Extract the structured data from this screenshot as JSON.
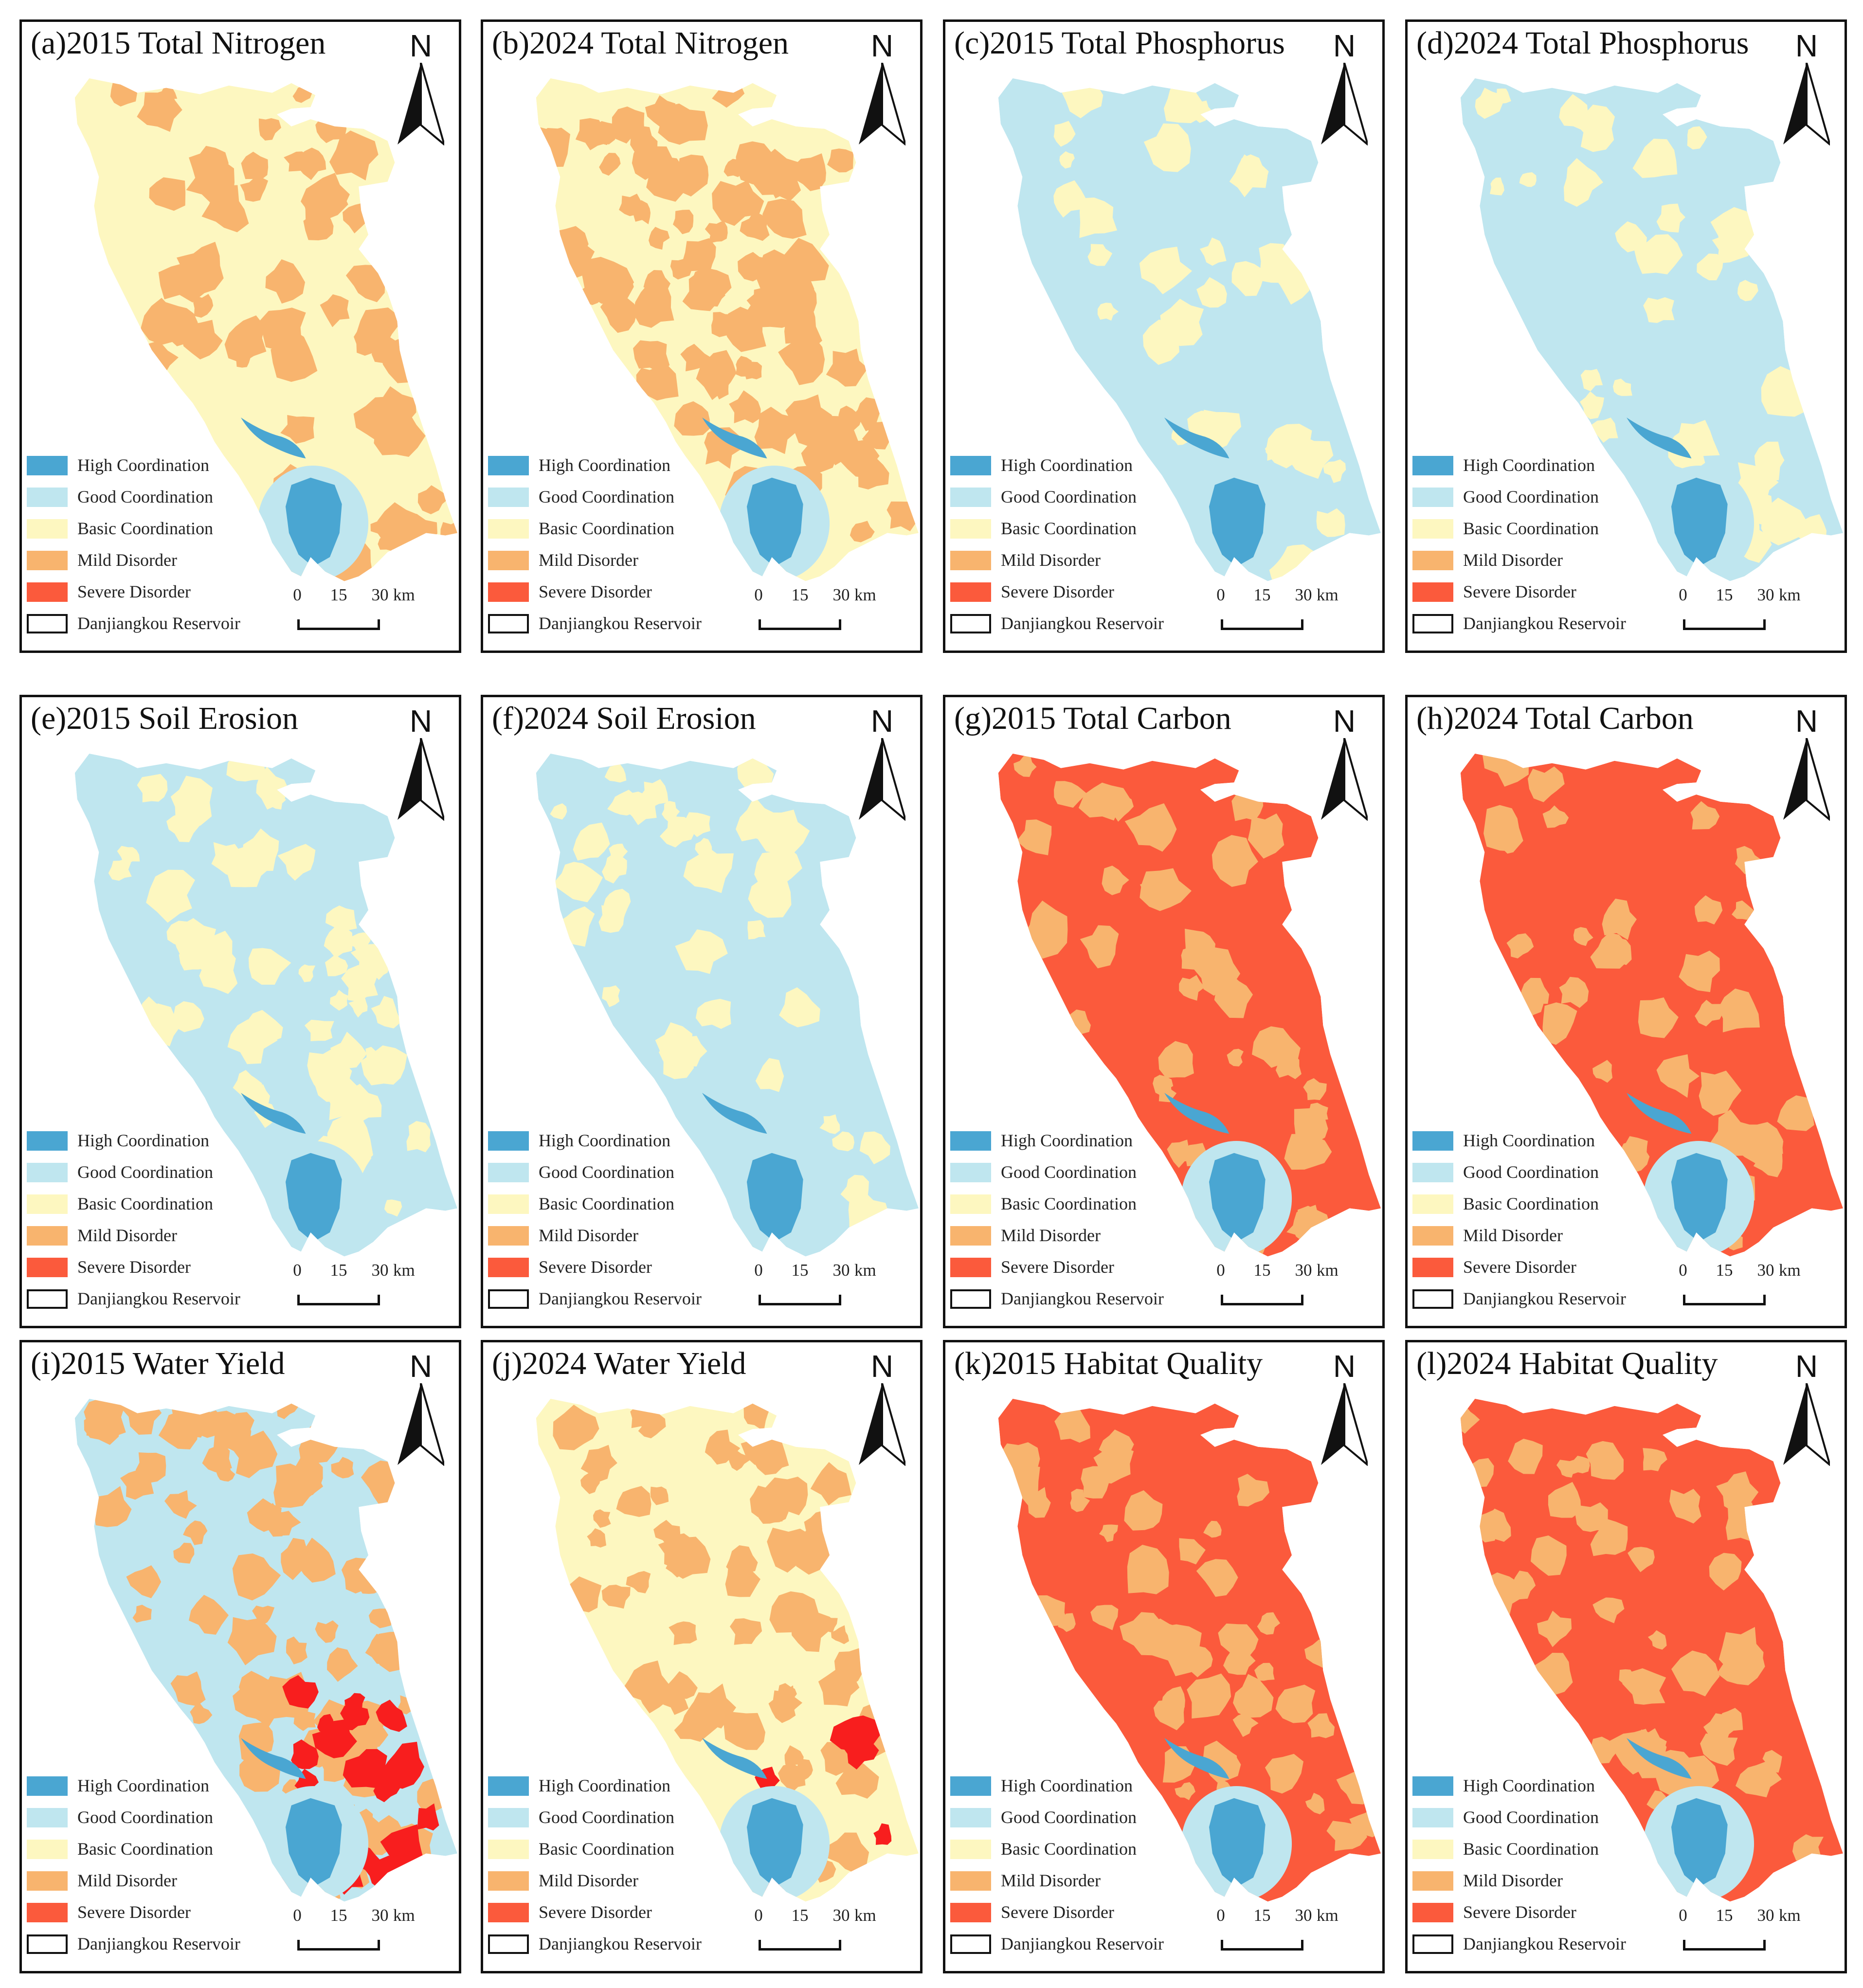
{
  "figure": {
    "panels": [
      {
        "title": "(a)2015 Total Nitrogen",
        "base": "basic",
        "patches": "mild",
        "patch_density": 0.38,
        "severe_overlay": 0.0
      },
      {
        "title": "(b)2024 Total Nitrogen",
        "base": "basic",
        "patches": "mild",
        "patch_density": 0.62,
        "severe_overlay": 0.0
      },
      {
        "title": "(c)2015 Total Phosphorus",
        "base": "good",
        "patches": "basic",
        "patch_density": 0.22,
        "severe_overlay": 0.0
      },
      {
        "title": "(d)2024 Total Phosphorus",
        "base": "good",
        "patches": "basic",
        "patch_density": 0.26,
        "severe_overlay": 0.0
      },
      {
        "title": "(e)2015 Soil Erosion",
        "base": "good",
        "patches": "basic",
        "patch_density": 0.42,
        "severe_overlay": 0.0
      },
      {
        "title": "(f)2024 Soil Erosion",
        "base": "good",
        "patches": "basic",
        "patch_density": 0.3,
        "severe_overlay": 0.0
      },
      {
        "title": "(g)2015 Total Carbon",
        "base": "severe",
        "patches": "mild",
        "patch_density": 0.3,
        "severe_overlay": 0.0
      },
      {
        "title": "(h)2024 Total Carbon",
        "base": "severe",
        "patches": "mild",
        "patch_density": 0.28,
        "severe_overlay": 0.0
      },
      {
        "title": "(i)2015 Water Yield",
        "base": "good",
        "patches": "mild",
        "patch_density": 0.5,
        "severe_overlay": 0.35
      },
      {
        "title": "(j)2024 Water Yield",
        "base": "basic",
        "patches": "mild",
        "patch_density": 0.45,
        "severe_overlay": 0.12
      },
      {
        "title": "(k)2015 Habitat Quality",
        "base": "severe",
        "patches": "mild",
        "patch_density": 0.35,
        "severe_overlay": 0.0
      },
      {
        "title": "(l)2024 Habitat Quality",
        "base": "severe",
        "patches": "mild",
        "patch_density": 0.33,
        "severe_overlay": 0.0
      }
    ]
  },
  "legend": {
    "items": [
      {
        "label": "High Coordination",
        "color": "#4aa6d2"
      },
      {
        "label": "Good Coordination",
        "color": "#bfe6ef"
      },
      {
        "label": "Basic Coordination",
        "color": "#fdf7c0"
      },
      {
        "label": "Mild Disorder",
        "color": "#f8b46e"
      },
      {
        "label": "Severe Disorder",
        "color": "#fb5a3c"
      },
      {
        "label": "Danjiangkou Reservoir",
        "color": "#ffffff"
      }
    ]
  },
  "north_label": "N",
  "scale": {
    "ticks": [
      "0",
      "15",
      "30"
    ],
    "unit": "km"
  },
  "colors": {
    "high": "#4aa6d2",
    "good": "#bfe6ef",
    "basic": "#fdf7c0",
    "mild": "#f8b46e",
    "severe": "#fb5a3c",
    "severe_bright": "#f81e1e",
    "frame": "#111111"
  }
}
